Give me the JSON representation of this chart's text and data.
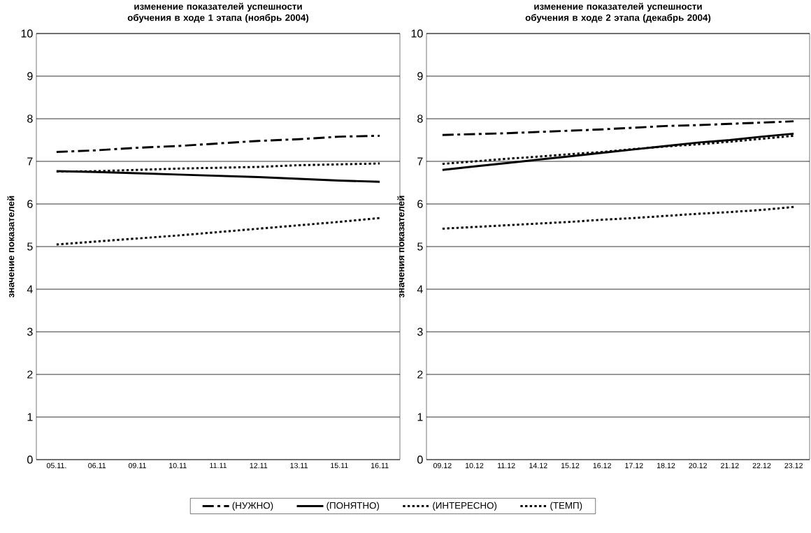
{
  "chart_data": [
    {
      "type": "line",
      "title": "изменение показателей успешности обучения в ходе 1 этапа (ноябрь 2004)",
      "ylabel": "значение показателей",
      "categories": [
        "05.11.",
        "06.11",
        "09.11",
        "10.11",
        "11.11",
        "12.11",
        "13.11",
        "15.11",
        "16.11"
      ],
      "series": [
        {
          "name": "(НУЖНО)",
          "color": "#000000",
          "line_style": "dashed",
          "values": [
            7.22,
            7.26,
            7.32,
            7.36,
            7.42,
            7.48,
            7.52,
            7.58,
            7.6
          ]
        },
        {
          "name": "(ПОНЯТНО)",
          "color": "#000000",
          "line_style": "solid",
          "values": [
            6.77,
            6.75,
            6.72,
            6.69,
            6.66,
            6.63,
            6.59,
            6.55,
            6.52
          ]
        },
        {
          "name": "(ИНТЕРЕСНО)",
          "color": "#000000",
          "line_style": "dotted",
          "values": [
            6.76,
            6.77,
            6.8,
            6.83,
            6.85,
            6.87,
            6.91,
            6.93,
            6.95
          ]
        },
        {
          "name": "(ТЕМП)",
          "color": "#000000",
          "line_style": "dotted",
          "values": [
            5.05,
            5.12,
            5.19,
            5.26,
            5.34,
            5.42,
            5.5,
            5.58,
            5.67
          ]
        }
      ],
      "ylim": [
        0,
        10
      ],
      "yticks": [
        0,
        1,
        2,
        3,
        4,
        5,
        6,
        7,
        8,
        9,
        10
      ],
      "grid": "y",
      "legend": "bottom",
      "marker": "none"
    },
    {
      "type": "line",
      "title": "изменение показателей успешности обучения в ходе 2 этапа (декабрь 2004)",
      "ylabel": "значения показателей",
      "categories": [
        "09.12",
        "10.12",
        "11.12",
        "14.12",
        "15.12",
        "16.12",
        "17.12",
        "18.12",
        "20.12",
        "21.12",
        "22.12",
        "23.12"
      ],
      "series": [
        {
          "color": "#000000",
          "line_style": "dashed",
          "values": [
            7.62,
            7.64,
            7.66,
            7.69,
            7.72,
            7.75,
            7.79,
            7.83,
            7.85,
            7.88,
            7.91,
            7.94
          ]
        },
        {
          "color": "#000000",
          "line_style": "solid",
          "values": [
            6.8,
            6.88,
            6.96,
            7.04,
            7.12,
            7.2,
            7.28,
            7.36,
            7.44,
            7.5,
            7.58,
            7.65
          ]
        },
        {
          "color": "#000000",
          "line_style": "dotted",
          "values": [
            6.94,
            7.0,
            7.06,
            7.11,
            7.17,
            7.22,
            7.29,
            7.35,
            7.4,
            7.46,
            7.53,
            7.6
          ]
        },
        {
          "color": "#000000",
          "line_style": "dotted",
          "values": [
            5.42,
            5.46,
            5.5,
            5.54,
            5.58,
            5.63,
            5.67,
            5.72,
            5.77,
            5.81,
            5.86,
            5.93
          ]
        }
      ],
      "ylim": [
        0,
        10
      ],
      "yticks": [
        0,
        1,
        2,
        3,
        4,
        5,
        6,
        7,
        8,
        9,
        10
      ],
      "grid": "y",
      "marker": "none"
    }
  ]
}
